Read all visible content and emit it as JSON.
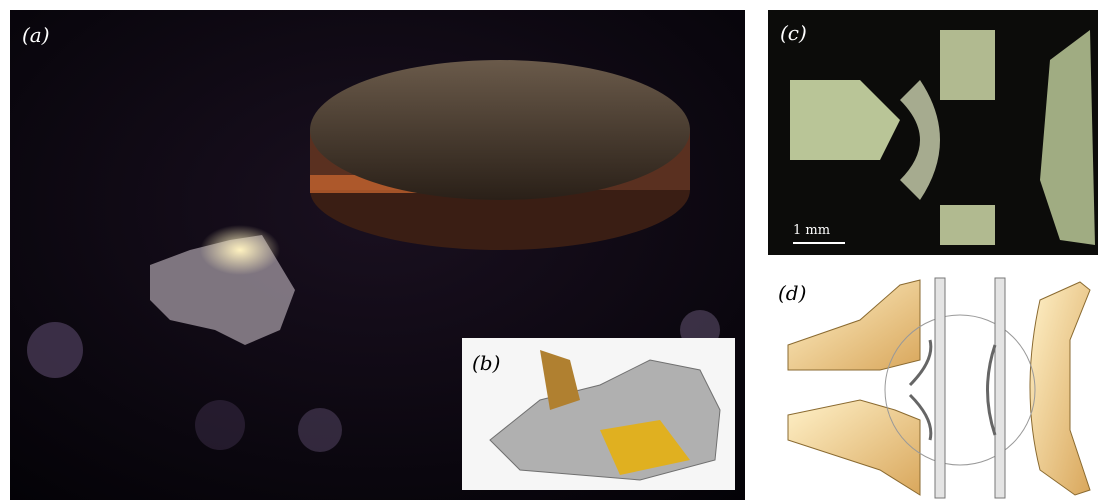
{
  "panels": {
    "a": {
      "label": "(a)"
    },
    "b": {
      "label": "(b)"
    },
    "c": {
      "label": "(c)",
      "scale_bar": "1 mm"
    },
    "d": {
      "label": "(d)"
    }
  }
}
